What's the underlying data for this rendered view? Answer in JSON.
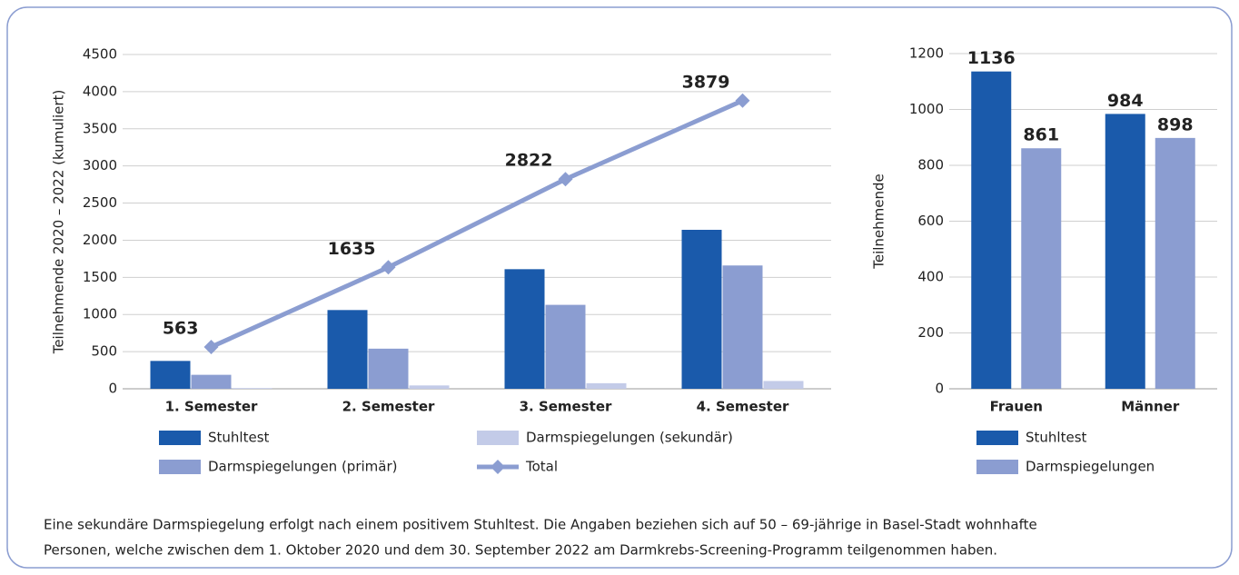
{
  "chart_data": [
    {
      "type": "bar",
      "ylabel": "Teilnehmende 2020 – 2022 (kumuliert)",
      "categories": [
        "1. Semester",
        "2. Semester",
        "3. Semester",
        "4. Semester"
      ],
      "series": [
        {
          "name": "Stuhltest",
          "color": "#1a5aab",
          "values": [
            375,
            1060,
            1610,
            2140
          ]
        },
        {
          "name": "Darmspiegelungen (primär)",
          "color": "#8b9dd1",
          "values": [
            188,
            540,
            1130,
            1660
          ]
        },
        {
          "name": "Darmspiegelungen (sekundär)",
          "color": "#c3cbe8",
          "values": [
            10,
            45,
            75,
            105
          ]
        },
        {
          "name": "Total",
          "type": "line",
          "color": "#8b9dd1",
          "values": [
            563,
            1635,
            2822,
            3879
          ],
          "show_labels": true
        }
      ],
      "ylim": [
        0,
        4500
      ],
      "yticks": [
        0,
        500,
        1000,
        1500,
        2000,
        2500,
        3000,
        3500,
        4000,
        4500
      ],
      "grid": true
    },
    {
      "type": "bar",
      "ylabel": "Teilnehmende",
      "categories": [
        "Frauen",
        "Männer"
      ],
      "series": [
        {
          "name": "Stuhltest",
          "color": "#1a5aab",
          "values": [
            1136,
            984
          ],
          "show_labels": true
        },
        {
          "name": "Darmspiegelungen",
          "color": "#8b9dd1",
          "values": [
            861,
            898
          ],
          "show_labels": true
        }
      ],
      "ylim": [
        0,
        1200
      ],
      "yticks": [
        0,
        200,
        400,
        600,
        800,
        1000,
        1200
      ],
      "grid": true
    }
  ],
  "footnote": [
    "Eine sekundäre Darmspiegelung erfolgt nach einem positivem Stuhltest. Die Angaben beziehen sich auf 50 – 69-jährige in Basel-Stadt wohnhafte",
    "Personen, welche zwischen dem 1. Oktober 2020 und dem 30. September 2022 am Darmkrebs-Screening-Programm teilgenommen haben."
  ]
}
